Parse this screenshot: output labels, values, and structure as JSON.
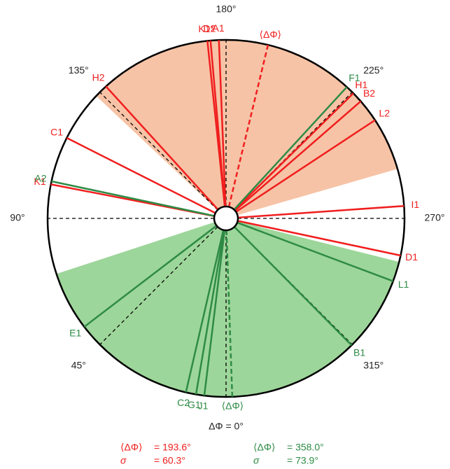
{
  "chart_data": {
    "type": "radial",
    "ticks": [
      {
        "value": 0,
        "label": "ΔΦ = 0°"
      },
      {
        "value": 45,
        "label": "45°"
      },
      {
        "value": 90,
        "label": "90°"
      },
      {
        "value": 135,
        "label": "135°"
      },
      {
        "value": 180,
        "label": "180°"
      },
      {
        "value": 225,
        "label": "225°"
      },
      {
        "value": 270,
        "label": "270°"
      },
      {
        "value": 315,
        "label": "315°"
      }
    ],
    "series": [
      {
        "color": "#f01e1e",
        "fill": "#f7c3a6",
        "mean": 193.6,
        "mean_label": "⟨ΔΦ⟩",
        "mean_value_label": "= 193.6°",
        "sigma": 60.3,
        "sigma_name": "σ",
        "sigma_value_label": "= 60.3°",
        "lines": [
          {
            "label": "K1*",
            "angle": 174
          },
          {
            "label": "D2",
            "angle": 175
          },
          {
            "label": "A1",
            "angle": 177.7
          },
          {
            "label": "H2",
            "angle": 137.7
          },
          {
            "label": "C1",
            "angle": 116.8
          },
          {
            "label": "K1",
            "angle": 101
          },
          {
            "label": "H1",
            "angle": 225.5
          },
          {
            "label": "B2",
            "angle": 229
          },
          {
            "label": "L2",
            "angle": 236.6
          },
          {
            "label": "I1",
            "angle": 266
          },
          {
            "label": "D1",
            "angle": 282
          }
        ]
      },
      {
        "color": "#2e8b45",
        "fill": "#9dd69a",
        "mean": 358.0,
        "mean_label": "⟨ΔΦ⟩",
        "mean_value_label": "= 358.0°",
        "sigma": 73.9,
        "sigma_name": "σ",
        "sigma_value_label": "= 73.9°",
        "lines": [
          {
            "label": "A2",
            "angle": 102
          },
          {
            "label": "F1",
            "angle": 222.6
          },
          {
            "label": "L1",
            "angle": 290.6
          },
          {
            "label": "B1",
            "angle": 315.3
          },
          {
            "label": "E1",
            "angle": 52.6
          },
          {
            "label": "C2",
            "angle": 13
          },
          {
            "label": "G1",
            "angle": 9.7
          },
          {
            "label": "J1",
            "angle": 7
          }
        ]
      }
    ]
  }
}
